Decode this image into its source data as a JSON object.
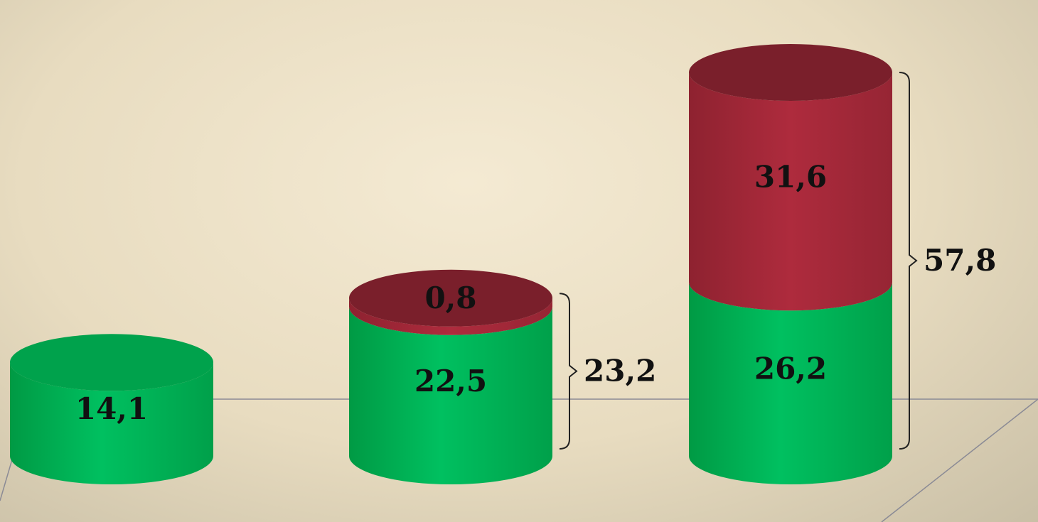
{
  "chart_data": {
    "type": "bar",
    "style": "3d-cylinder-stacked",
    "categories": [
      "",
      "",
      ""
    ],
    "series": [
      {
        "values": [
          14.1,
          22.5,
          26.2
        ],
        "color": "#00b050"
      },
      {
        "values": [
          0,
          0.8,
          31.6
        ],
        "color": "#a52a3a"
      }
    ],
    "data_labels": [
      [
        "14,1",
        "22,5",
        "26,2"
      ],
      [
        "",
        "0,8",
        "31,6"
      ]
    ],
    "totals": [
      null,
      23.2,
      57.8
    ],
    "total_labels": [
      "",
      "23,2",
      "57,8"
    ],
    "title": "",
    "xlabel": "",
    "ylabel": "",
    "ylim": [
      0,
      60
    ],
    "grid": false,
    "legend": "none"
  }
}
